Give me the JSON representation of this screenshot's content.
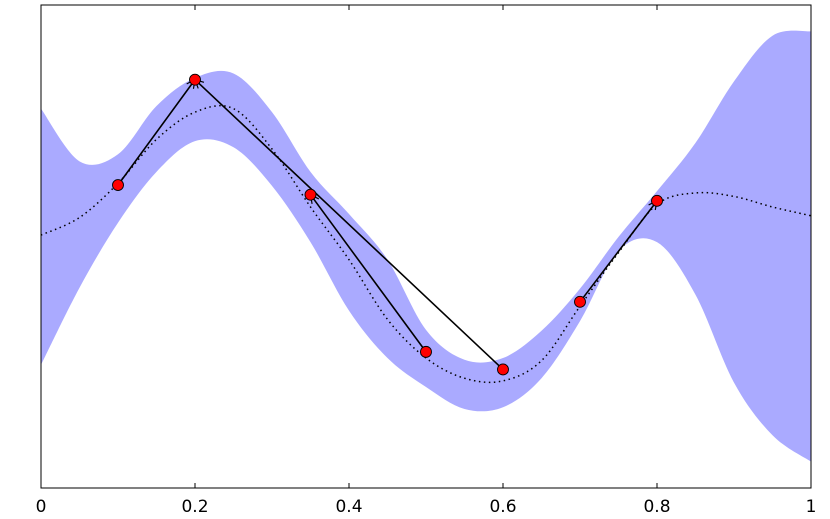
{
  "chart_data": {
    "type": "line",
    "title": "",
    "xlabel": "",
    "ylabel": "",
    "xlim": [
      0,
      1
    ],
    "ylim": [
      -3,
      2.5
    ],
    "grid": false,
    "x_ticks": [
      "0",
      "0.2",
      "0.4",
      "0.6",
      "0.8",
      "1"
    ],
    "x_tick_values": [
      0,
      0.2,
      0.4,
      0.6,
      0.8,
      1
    ],
    "colors": {
      "band": "#aaaaff",
      "mean": "#000000",
      "points": "#ff0000",
      "arrows": "#000000"
    },
    "band": {
      "x": [
        0.0,
        0.05,
        0.1,
        0.15,
        0.2,
        0.25,
        0.3,
        0.35,
        0.4,
        0.45,
        0.5,
        0.55,
        0.6,
        0.65,
        0.7,
        0.75,
        0.8,
        0.85,
        0.9,
        0.95,
        1.0
      ],
      "upper": [
        1.32,
        0.72,
        0.8,
        1.35,
        1.67,
        1.72,
        1.28,
        0.6,
        0.12,
        -0.4,
        -1.2,
        -1.54,
        -1.52,
        -1.21,
        -0.73,
        -0.14,
        0.38,
        0.93,
        1.63,
        2.15,
        2.2
      ],
      "lower": [
        -1.6,
        -0.72,
        0.02,
        0.6,
        0.95,
        0.88,
        0.44,
        -0.2,
        -0.98,
        -1.52,
        -1.85,
        -2.1,
        -2.08,
        -1.75,
        -1.1,
        -0.3,
        -0.2,
        -0.8,
        -1.8,
        -2.4,
        -2.7
      ]
    },
    "series": [
      {
        "type": "line",
        "style": "dotted",
        "x": [
          0.0,
          0.05,
          0.1,
          0.15,
          0.2,
          0.25,
          0.3,
          0.35,
          0.4,
          0.45,
          0.5,
          0.55,
          0.6,
          0.65,
          0.7,
          0.75,
          0.8,
          0.85,
          0.9,
          0.95,
          1.0
        ],
        "y": [
          -0.12,
          0.08,
          0.47,
          0.97,
          1.28,
          1.32,
          0.86,
          0.2,
          -0.4,
          -1.08,
          -1.52,
          -1.75,
          -1.78,
          -1.55,
          -0.93,
          -0.32,
          0.23,
          0.36,
          0.32,
          0.2,
          0.1
        ]
      },
      {
        "type": "scatter",
        "x": [
          0.1,
          0.2,
          0.35,
          0.5,
          0.6,
          0.7,
          0.8
        ],
        "y": [
          0.45,
          1.65,
          0.34,
          -1.45,
          -1.65,
          -0.88,
          0.27
        ]
      }
    ],
    "arrows": [
      {
        "from": [
          0.1,
          0.45
        ],
        "to": [
          0.2,
          1.65
        ]
      },
      {
        "from": [
          0.6,
          -1.65
        ],
        "to": [
          0.2,
          1.65
        ]
      },
      {
        "from": [
          0.5,
          -1.45
        ],
        "to": [
          0.35,
          0.34
        ]
      },
      {
        "from": [
          0.7,
          -0.88
        ],
        "to": [
          0.8,
          0.27
        ]
      }
    ]
  }
}
